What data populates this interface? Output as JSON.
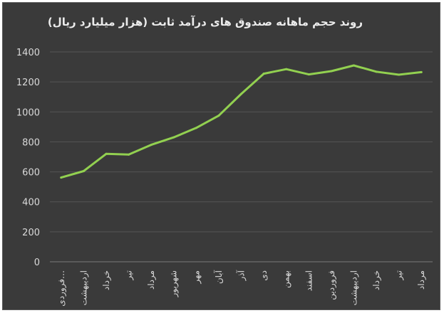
{
  "chart_data": {
    "type": "line",
    "title": "روند حجم ماهانه صندوق های درآمد ثابت (هزار میلیارد ریال)",
    "categories": [
      "فروردی…",
      "اردیبهشت",
      "خرداد",
      "تیر",
      "مرداد",
      "شهریور",
      "مهر",
      "آبان",
      "آذر",
      "دی",
      "بهمن",
      "اسفند",
      "فروردین",
      "اردیبهشت",
      "خرداد",
      "تیر",
      "مرداد"
    ],
    "series": [
      {
        "values": [
          562,
          605,
          720,
          715,
          780,
          830,
          893,
          975,
          1120,
          1255,
          1285,
          1250,
          1272,
          1310,
          1268,
          1248,
          1265
        ]
      }
    ],
    "ylim": [
      0,
      1400
    ],
    "yticks": [
      0,
      200,
      400,
      600,
      800,
      1000,
      1200,
      1400
    ],
    "xlabel": "",
    "ylabel": "",
    "grid": true,
    "line_color": "#92d050",
    "background": "#3a3a3a"
  }
}
